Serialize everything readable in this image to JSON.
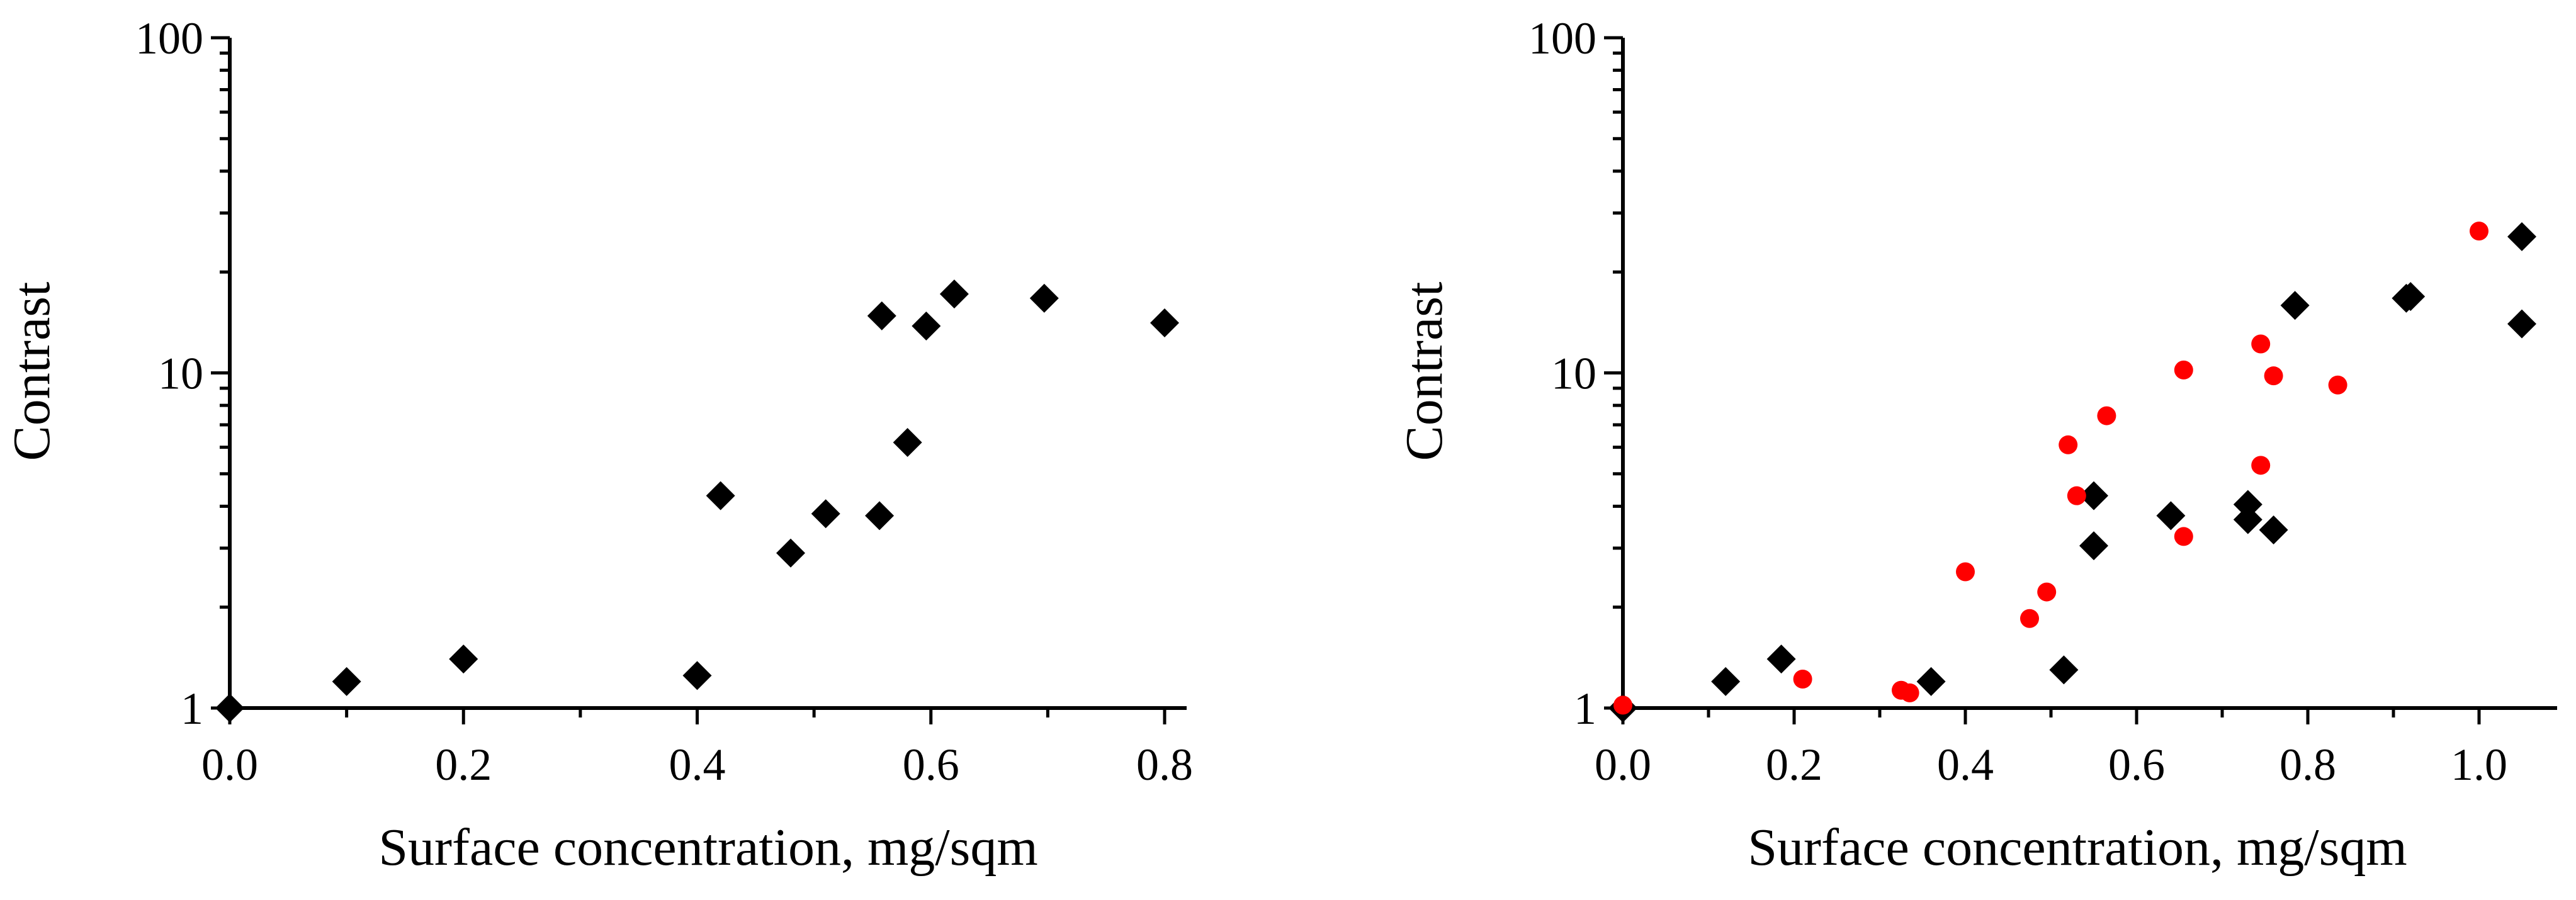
{
  "chart_data": [
    {
      "type": "scatter",
      "title": "",
      "xlabel": "Surface concentration, mg/sqm",
      "ylabel": "Contrast",
      "xlim": [
        0,
        0.8
      ],
      "ylim": [
        1,
        100
      ],
      "yscale": "log",
      "grid": false,
      "x_ticks": [
        0.0,
        0.2,
        0.4,
        0.6,
        0.8
      ],
      "x_tick_labels": [
        "0.0",
        "0.2",
        "0.4",
        "0.6",
        "0.8"
      ],
      "y_ticks": [
        1,
        10,
        100
      ],
      "y_tick_labels": [
        "1",
        "10",
        "100"
      ],
      "series": [
        {
          "name": "black diamonds",
          "marker": "diamond",
          "color": "#000000",
          "points": [
            [
              0.0,
              1.0
            ],
            [
              0.1,
              1.2
            ],
            [
              0.2,
              1.4
            ],
            [
              0.4,
              1.25
            ],
            [
              0.42,
              4.3
            ],
            [
              0.48,
              2.9
            ],
            [
              0.51,
              3.8
            ],
            [
              0.556,
              3.75
            ],
            [
              0.558,
              14.8
            ],
            [
              0.58,
              6.2
            ],
            [
              0.596,
              13.8
            ],
            [
              0.62,
              17.2
            ],
            [
              0.697,
              16.7
            ],
            [
              0.8,
              14.1
            ]
          ]
        }
      ]
    },
    {
      "type": "scatter",
      "title": "",
      "xlabel": "Surface concentration, mg/sqm",
      "ylabel": "Contrast",
      "xlim": [
        0,
        1.05
      ],
      "ylim": [
        1,
        100
      ],
      "yscale": "log",
      "grid": false,
      "x_ticks": [
        0.0,
        0.2,
        0.4,
        0.6,
        0.8,
        1.0
      ],
      "x_tick_labels": [
        "0.0",
        "0.2",
        "0.4",
        "0.6",
        "0.8",
        "1.0"
      ],
      "y_ticks": [
        1,
        10,
        100
      ],
      "y_tick_labels": [
        "1",
        "10",
        "100"
      ],
      "series": [
        {
          "name": "black diamonds",
          "marker": "diamond",
          "color": "#000000",
          "points": [
            [
              0.0,
              1.0
            ],
            [
              0.12,
              1.2
            ],
            [
              0.185,
              1.4
            ],
            [
              0.36,
              1.2
            ],
            [
              0.515,
              1.3
            ],
            [
              0.55,
              4.3
            ],
            [
              0.55,
              3.05
            ],
            [
              0.64,
              3.75
            ],
            [
              0.73,
              4.05
            ],
            [
              0.73,
              3.65
            ],
            [
              0.76,
              3.4
            ],
            [
              0.785,
              15.9
            ],
            [
              0.915,
              16.7
            ],
            [
              0.92,
              16.9
            ],
            [
              1.05,
              25.5
            ],
            [
              1.05,
              14.0
            ]
          ]
        },
        {
          "name": "red circles",
          "marker": "circle",
          "color": "#ff0000",
          "points": [
            [
              0.0,
              1.02
            ],
            [
              0.21,
              1.22
            ],
            [
              0.325,
              1.13
            ],
            [
              0.335,
              1.11
            ],
            [
              0.4,
              2.55
            ],
            [
              0.475,
              1.85
            ],
            [
              0.495,
              2.22
            ],
            [
              0.52,
              6.1
            ],
            [
              0.53,
              4.3
            ],
            [
              0.565,
              7.45
            ],
            [
              0.655,
              10.2
            ],
            [
              0.655,
              3.25
            ],
            [
              0.745,
              12.2
            ],
            [
              0.745,
              5.3
            ],
            [
              0.76,
              9.8
            ],
            [
              0.835,
              9.2
            ],
            [
              1.0,
              26.5
            ]
          ]
        }
      ]
    }
  ]
}
